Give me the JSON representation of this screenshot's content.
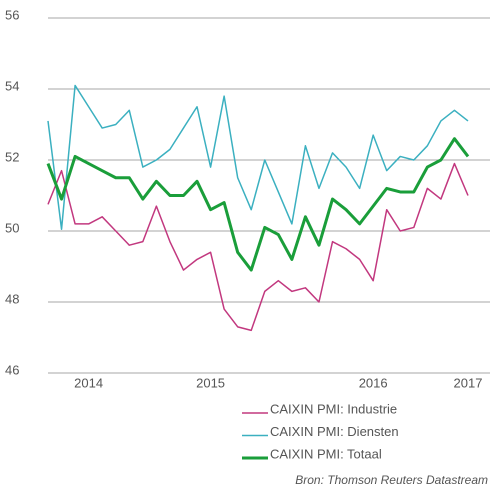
{
  "chart_data": {
    "type": "line",
    "categories": [
      null,
      null,
      null,
      "2014",
      null,
      null,
      null,
      null,
      null,
      null,
      null,
      null,
      "2015",
      null,
      null,
      null,
      null,
      null,
      null,
      null,
      null,
      null,
      null,
      null,
      "2016",
      null,
      null,
      null,
      null,
      null,
      null,
      "2017"
    ],
    "series": [
      {
        "name": "CAIXIN PMI: Industrie",
        "color": "#c2387f",
        "width": 1.5,
        "values": [
          50.75,
          51.7,
          50.2,
          50.2,
          50.4,
          50.0,
          49.6,
          49.7,
          50.7,
          49.7,
          48.9,
          49.2,
          49.4,
          47.8,
          47.3,
          47.2,
          48.3,
          48.6,
          48.3,
          48.4,
          48.0,
          49.7,
          49.5,
          49.2,
          48.6,
          50.6,
          50.0,
          50.1,
          51.2,
          50.9,
          51.9,
          51.0
        ]
      },
      {
        "name": "CAIXIN PMI: Diensten",
        "color": "#3bb0c0",
        "width": 1.5,
        "values": [
          53.1,
          50.05,
          54.1,
          53.5,
          52.9,
          53.0,
          53.4,
          51.8,
          52.0,
          52.3,
          52.9,
          53.5,
          51.8,
          53.8,
          51.5,
          50.6,
          52.0,
          51.1,
          50.2,
          52.4,
          51.2,
          52.2,
          51.8,
          51.2,
          52.7,
          51.7,
          52.1,
          52.0,
          52.4,
          53.1,
          53.4,
          53.1
        ]
      },
      {
        "name": "CAIXIN PMI: Totaal",
        "color": "#1a9e3a",
        "width": 3,
        "values": [
          51.9,
          50.9,
          52.1,
          51.9,
          51.7,
          51.5,
          51.5,
          50.9,
          51.4,
          51.0,
          51.0,
          51.4,
          50.6,
          50.8,
          49.4,
          48.9,
          50.1,
          49.9,
          49.2,
          50.4,
          49.6,
          50.9,
          50.6,
          50.2,
          50.7,
          51.2,
          51.1,
          51.1,
          51.8,
          52.0,
          52.6,
          52.1
        ]
      }
    ],
    "ylim": [
      46,
      56
    ],
    "yticks": [
      46,
      48,
      50,
      52,
      54,
      56
    ],
    "grid": true,
    "source": "Bron: Thomson Reuters Datastream"
  }
}
